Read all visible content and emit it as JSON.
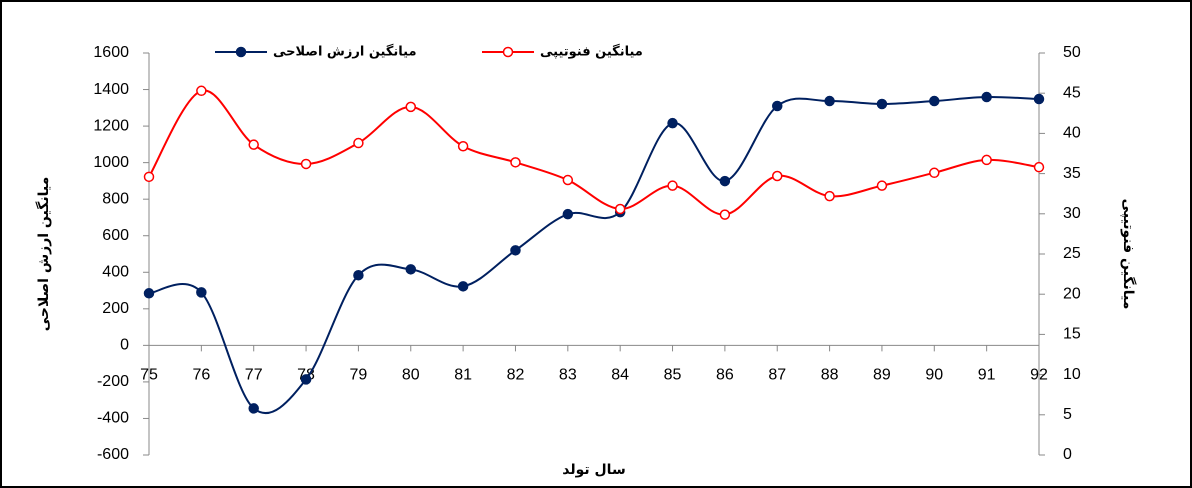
{
  "chart_data": {
    "type": "line",
    "x_label": "سال تولد",
    "y_label": "میانگین ارزش اصلاحی",
    "y2_label": "میانگین فنوتیپی",
    "categories": [
      "75",
      "76",
      "77",
      "78",
      "79",
      "80",
      "81",
      "82",
      "83",
      "84",
      "85",
      "86",
      "87",
      "88",
      "89",
      "90",
      "91",
      "92"
    ],
    "series": [
      {
        "name": "میانگین ارزش اصلاحی",
        "color": "#002060",
        "marker": "filled",
        "values": [
          285,
          290,
          -345,
          -186,
          384,
          416,
          323,
          520,
          718,
          729,
          1216,
          899,
          1310,
          1337,
          1321,
          1337,
          1359,
          1348
        ]
      },
      {
        "name": "میانگین فنوتیپی",
        "color": "#ff0000",
        "marker": "open",
        "axis": "y2",
        "values": [
          34.6,
          45.3,
          38.6,
          36.2,
          38.8,
          43.3,
          38.4,
          36.4,
          34.2,
          30.6,
          33.5,
          29.9,
          34.7,
          32.2,
          33.5,
          35.1,
          36.7,
          35.8
        ]
      }
    ],
    "ylim": [
      -600,
      1600
    ],
    "yticks": [
      -600,
      -400,
      -200,
      0,
      200,
      400,
      600,
      800,
      1000,
      1200,
      1400,
      1600
    ],
    "y2lim": [
      0,
      50
    ],
    "y2ticks": [
      0,
      5,
      10,
      15,
      20,
      25,
      30,
      35,
      40,
      45,
      50
    ],
    "smooth": true,
    "grid": false,
    "legend": "top"
  }
}
